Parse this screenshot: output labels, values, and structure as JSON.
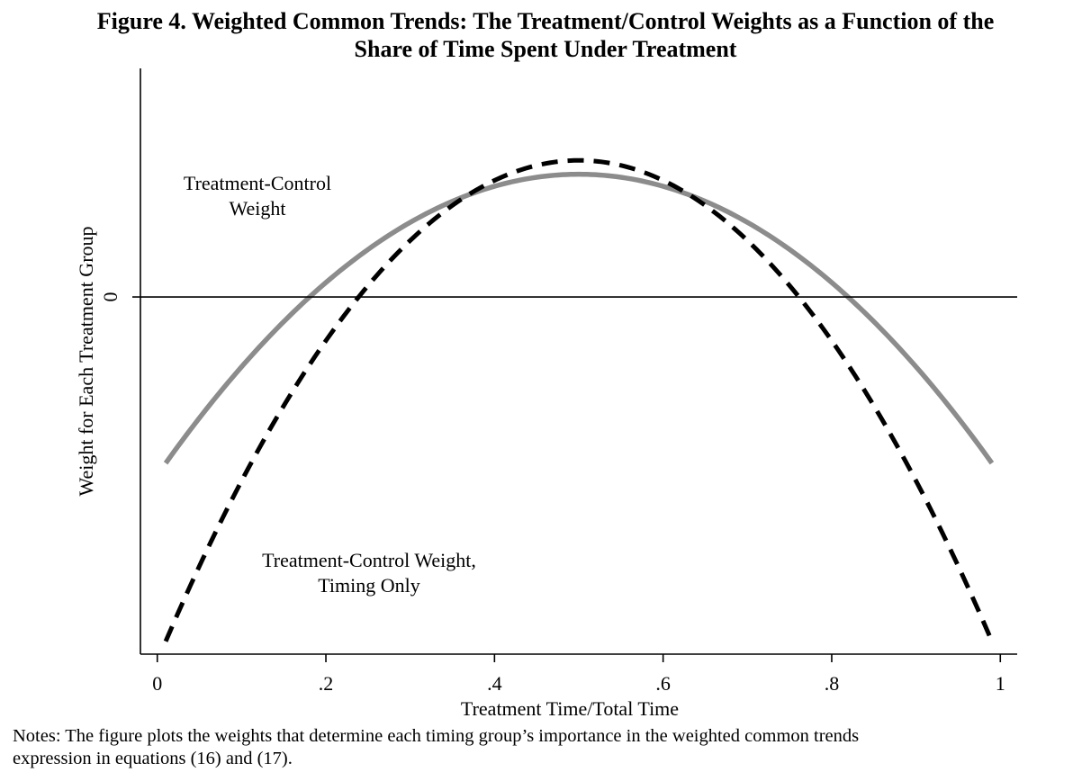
{
  "figure": {
    "title_line1": "Figure 4. Weighted Common Trends: The Treatment/Control Weights as a Function of the",
    "title_line2": "Share of Time Spent Under Treatment",
    "notes_line1": "Notes: The figure plots the weights that determine each timing group’s importance in the weighted common trends",
    "notes_line2": "expression in equations (16) and (17)."
  },
  "chart_data": {
    "type": "line",
    "xlabel": "Treatment Time/Total Time",
    "ylabel": "Weight for Each Treatment Group",
    "xlim": [
      -0.02,
      1.02
    ],
    "ylim": [
      -1.25,
      0.8
    ],
    "x_ticks": [
      0,
      0.2,
      0.4,
      0.6,
      0.8,
      1
    ],
    "x_tick_labels": [
      "0",
      ".2",
      ".4",
      ".6",
      ".8",
      "1"
    ],
    "y_ticks": [
      0
    ],
    "y_tick_labels": [
      "0"
    ],
    "grid": false,
    "reference_line_y": 0,
    "series": [
      {
        "annotation": [
          "Treatment-Control",
          "Weight"
        ],
        "color": "#8c8c8c",
        "style": "solid",
        "x": [
          0.01,
          0.05,
          0.1,
          0.15,
          0.2,
          0.25,
          0.3,
          0.35,
          0.4,
          0.45,
          0.5,
          0.55,
          0.6,
          0.65,
          0.7,
          0.75,
          0.8,
          0.85,
          0.9,
          0.95,
          0.99
        ],
        "values": [
          -0.566,
          -0.418,
          -0.249,
          -0.098,
          0.036,
          0.152,
          0.25,
          0.33,
          0.392,
          0.437,
          0.464,
          0.437,
          0.392,
          0.33,
          0.25,
          0.152,
          0.036,
          -0.098,
          -0.249,
          -0.418,
          -0.566
        ]
      },
      {
        "annotation": [
          "Treatment-Control Weight,",
          "Timing Only"
        ],
        "color": "#000000",
        "style": "dashed",
        "x": [
          0.01,
          0.05,
          0.1,
          0.15,
          0.2,
          0.25,
          0.3,
          0.35,
          0.4,
          0.45,
          0.5,
          0.55,
          0.6,
          0.65,
          0.7,
          0.75,
          0.8,
          0.85,
          0.9,
          0.95,
          0.99
        ],
        "values": [
          -1.179,
          -0.933,
          -0.651,
          -0.4,
          -0.177,
          0.016,
          0.179,
          0.312,
          0.416,
          0.491,
          0.535,
          0.491,
          0.416,
          0.312,
          0.179,
          0.016,
          -0.177,
          -0.4,
          -0.651,
          -0.933,
          -1.179
        ]
      }
    ]
  }
}
